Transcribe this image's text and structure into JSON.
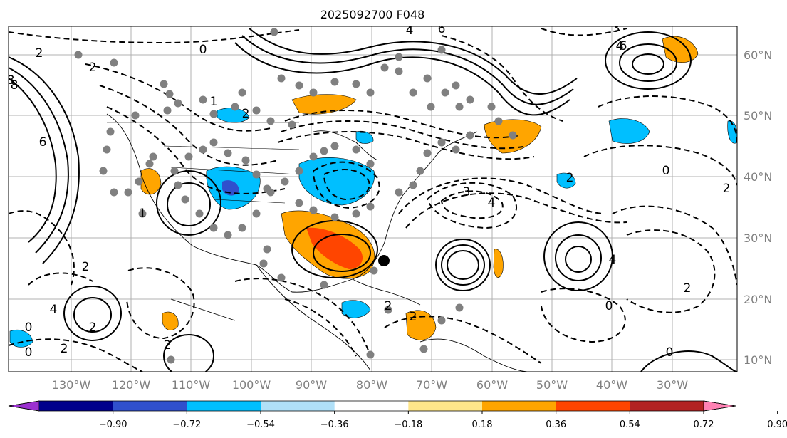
{
  "title": "2025092700 F048",
  "lon_labels": [
    "130°W",
    "120°W",
    "110°W",
    "100°W",
    "90°W",
    "80°W",
    "70°W",
    "60°W",
    "50°W",
    "40°W",
    "30°W"
  ],
  "lat_labels": [
    "60°N",
    "50°N",
    "40°N",
    "30°N",
    "20°N",
    "10°N"
  ],
  "colorbar": {
    "ticks": [
      "−0.90",
      "−0.72",
      "−0.54",
      "−0.36",
      "−0.18",
      "0.18",
      "0.36",
      "0.54",
      "0.72",
      "0.90"
    ],
    "colors": [
      "#9b30d0",
      "#00008b",
      "#3050cd",
      "#00bfff",
      "#b0e0f8",
      "#ffffff",
      "#ffe68a",
      "#ffa500",
      "#ff4500",
      "#b22222",
      "#ff82b4"
    ]
  },
  "contour_labels": [
    "2",
    "2",
    "0",
    "4",
    "6",
    "3",
    "4",
    "8",
    "6",
    "6",
    "8",
    "2",
    "4",
    "2",
    "0",
    "2",
    "0",
    "2",
    "1",
    "2",
    "4",
    "3",
    "4",
    "2",
    "0",
    "2",
    "0",
    "2",
    "2",
    "1",
    "0",
    "2"
  ],
  "colors": {
    "frame": "#000000",
    "grid": "#b0b0b0",
    "label_gray": "#7f7f7f"
  }
}
